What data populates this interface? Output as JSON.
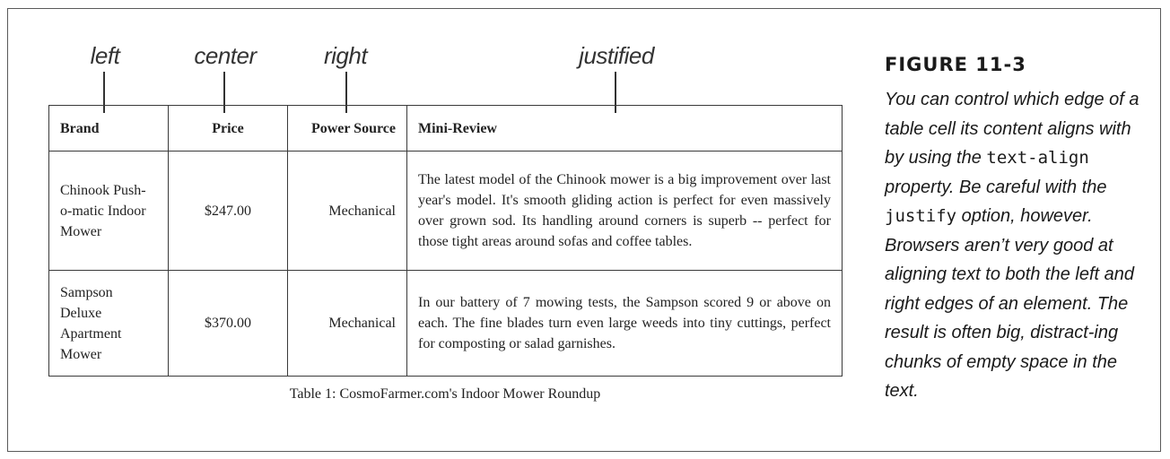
{
  "callouts": {
    "left": "left",
    "center": "center",
    "right": "right",
    "justified": "justified"
  },
  "table": {
    "headers": [
      "Brand",
      "Price",
      "Power Source",
      "Mini-Review"
    ],
    "rows": [
      {
        "brand": "Chinook Push-o-matic Indoor Mower",
        "price": "$247.00",
        "power_source": "Mechanical",
        "review": "The latest model of the Chinook mower is a big improvement over last year's model. It's smooth gliding action is perfect for even massively over grown sod. Its handling around corners is superb -- perfect for those tight areas around sofas and coffee tables."
      },
      {
        "brand": "Sampson Deluxe Apartment Mower",
        "price": "$370.00",
        "power_source": "Mechanical",
        "review": "In our battery of 7 mowing tests, the Sampson scored 9 or above on each. The fine blades turn even large weeds into tiny cuttings, perfect for composting or salad garnishes."
      }
    ],
    "caption": "Table 1: CosmoFarmer.com's Indoor Mower Roundup"
  },
  "figure": {
    "label": "FIGURE 11-3",
    "text_1": "You can control which edge of a table cell its content aligns with by using the ",
    "code_1": "text-align",
    "text_2": " property. Be careful with the ",
    "code_2": "justify",
    "text_3": " option, however. Browsers aren’t very good at aligning text to both the left and right edges of an element. The result is often big, distract-ing chunks of empty space in the text."
  }
}
